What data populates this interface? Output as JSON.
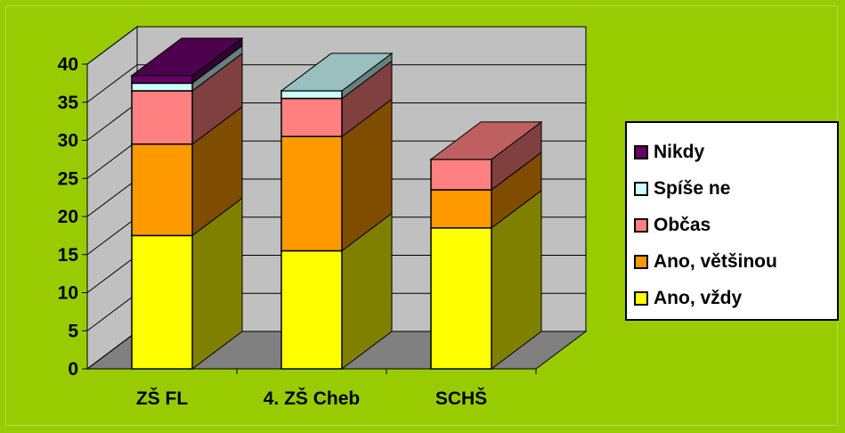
{
  "chart_data": {
    "type": "bar",
    "stacked": true,
    "three_d": true,
    "categories": [
      "ZŠ FL",
      "4. ZŠ Cheb",
      "SCHŠ"
    ],
    "series": [
      {
        "name": "Ano, vždy",
        "color": "#ffff00",
        "values": [
          17.5,
          15.5,
          18.5
        ]
      },
      {
        "name": "Ano, většinou",
        "color": "#ff9900",
        "values": [
          12,
          15,
          5
        ]
      },
      {
        "name": "Občas",
        "color": "#ff8080",
        "values": [
          7,
          5,
          4
        ]
      },
      {
        "name": "Spíše ne",
        "color": "#ccffff",
        "values": [
          1,
          1,
          0
        ]
      },
      {
        "name": "Nikdy",
        "color": "#660066",
        "values": [
          1,
          0,
          0
        ]
      }
    ],
    "ylim": [
      0,
      40
    ],
    "yticks": [
      "0",
      "5",
      "10",
      "15",
      "20",
      "25",
      "30",
      "35",
      "40"
    ],
    "grid": true,
    "legend_position": "right",
    "title": "",
    "xlabel": "",
    "ylabel": ""
  },
  "colors": {
    "background": "#99cc00",
    "walls": "#c0c0c0",
    "floor": "#808080",
    "legend_background": "#ffffff"
  }
}
